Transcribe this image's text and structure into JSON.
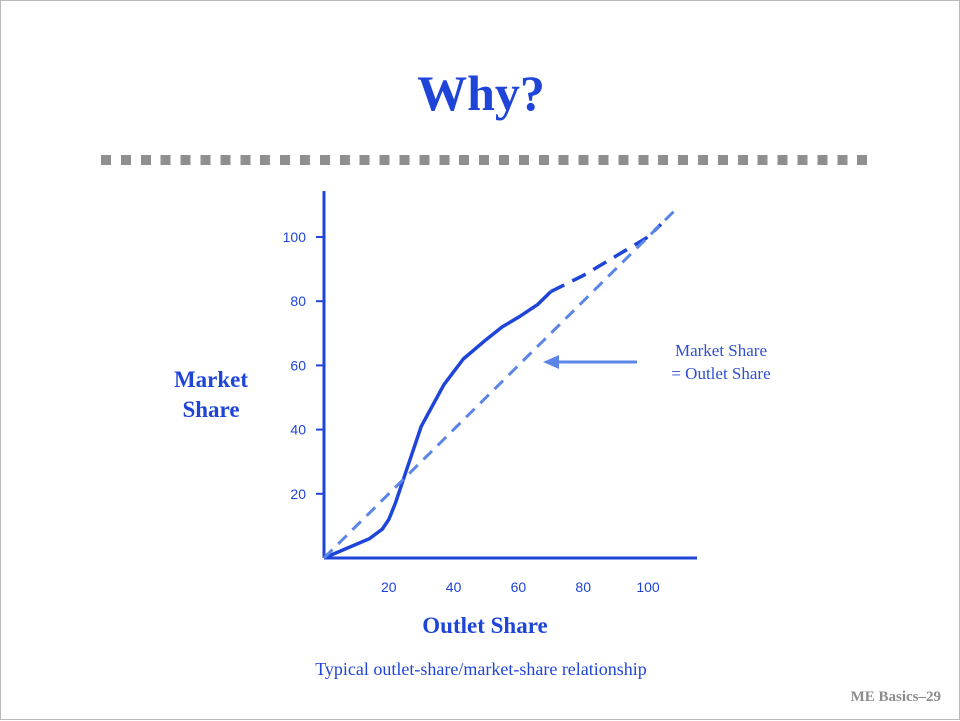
{
  "slide": {
    "title": "Why?",
    "footer": "ME Basics–29"
  },
  "chart_data": {
    "type": "line",
    "title": "",
    "xlabel": "Outlet Share",
    "ylabel_line1": "Market",
    "ylabel_line2": "Share",
    "caption": "Typical outlet-share/market-share relationship",
    "xlim": [
      0,
      115
    ],
    "ylim": [
      0,
      115
    ],
    "x_ticks": [
      "20",
      "40",
      "60",
      "80",
      "100"
    ],
    "y_ticks": [
      "20",
      "40",
      "60",
      "80",
      "100"
    ],
    "grid": false,
    "annotation": {
      "line1": "Market Share",
      "line2": "= Outlet Share",
      "points_to": "Market Share = Outlet Share reference line"
    },
    "series": [
      {
        "style": "solid",
        "color": "#1f45d8",
        "x": [
          0,
          7,
          14,
          18,
          20,
          22,
          25,
          30,
          37,
          43,
          50,
          55,
          60,
          66,
          70
        ],
        "y": [
          0,
          3,
          6,
          9,
          12,
          17,
          26,
          41,
          54,
          62,
          68,
          72,
          75,
          79,
          83
        ]
      },
      {
        "style": "dashed",
        "color": "#1f45d8",
        "x": [
          70,
          80,
          90,
          100,
          104
        ],
        "y": [
          83,
          88,
          94,
          100,
          104
        ]
      },
      {
        "style": "dashed",
        "color": "#5b86e8",
        "x": [
          0,
          109
        ],
        "y": [
          0,
          109
        ]
      }
    ],
    "colors": {
      "accent": "#1f45d8",
      "reference": "#5b86e8",
      "divider": "#8f8f8f",
      "footer": "#8c8c8c"
    }
  }
}
